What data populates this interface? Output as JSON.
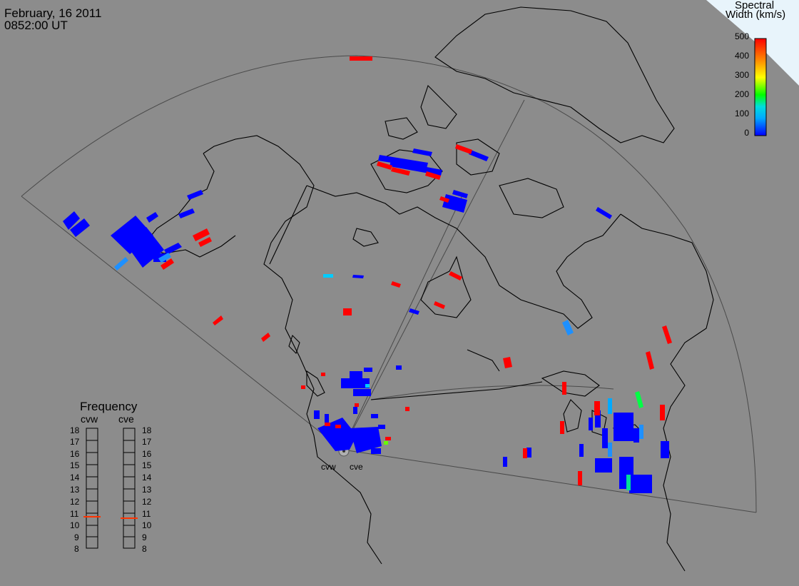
{
  "header": {
    "date": "February, 16 2011",
    "time": "0852:00 UT"
  },
  "colorbar": {
    "title_line1": "Spectral",
    "title_line2": "Width (km/s)",
    "ticks": [
      "500",
      "400",
      "300",
      "200",
      "100",
      "0"
    ],
    "range": [
      0,
      500
    ],
    "colors": [
      "#ff0000",
      "#ff8800",
      "#ffff00",
      "#00ff00",
      "#00dddd",
      "#00aaff",
      "#0000ff"
    ]
  },
  "frequency_panel": {
    "title": "Frequency",
    "radars": [
      {
        "code": "cvw",
        "frequency_mhz": 10.7
      },
      {
        "code": "cve",
        "frequency_mhz": 10.6
      }
    ],
    "ticks": [
      "18",
      "17",
      "16",
      "15",
      "14",
      "13",
      "12",
      "11",
      "10",
      "9",
      "8"
    ],
    "indicator_color": "#ff3300"
  },
  "radar_labels": [
    "cvw",
    "cve"
  ],
  "colors": {
    "background": "#8c8c8c",
    "coast": "#000000",
    "fov_outline": "#444444",
    "low_width": "#0000ff",
    "high_width": "#ff0000",
    "mid_width": "#00aaff",
    "green": "#00ff44"
  }
}
